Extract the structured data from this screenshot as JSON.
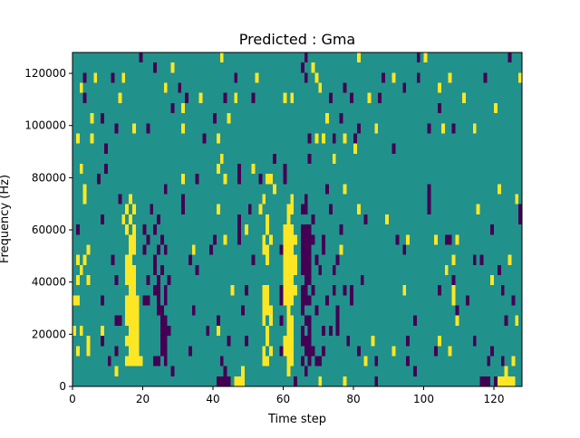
{
  "chart_data": {
    "type": "heatmap",
    "title": "Predicted : Gma",
    "xlabel": "Time step",
    "ylabel": "Frequency (Hz)",
    "xlim": [
      0,
      128
    ],
    "ylim": [
      0,
      128000
    ],
    "x_ticks": [
      0,
      20,
      40,
      60,
      80,
      100,
      120
    ],
    "x_tick_labels": [
      "0",
      "20",
      "40",
      "60",
      "80",
      "100",
      "120"
    ],
    "y_ticks": [
      0,
      20000,
      40000,
      60000,
      80000,
      100000,
      120000
    ],
    "y_tick_labels": [
      "0",
      "20000",
      "40000",
      "60000",
      "80000",
      "100000",
      "120000"
    ],
    "n_time_steps": 128,
    "n_freq_bins": 33,
    "colors": {
      "-1": "#440154",
      "0": "#21918c",
      "1": "#fde725"
    },
    "background_value": 0,
    "rows_top_to_bottom": [
      [
        [
          19,
          -1
        ],
        [
          42,
          1
        ],
        [
          66,
          -1
        ],
        [
          81,
          1
        ],
        [
          98,
          -1
        ],
        [
          100,
          1
        ],
        [
          124,
          -1
        ]
      ],
      [
        [
          23,
          -1
        ],
        [
          28,
          1
        ],
        [
          65,
          -1
        ],
        [
          68,
          1
        ]
      ],
      [
        [
          3,
          -1
        ],
        [
          6,
          1
        ],
        [
          11,
          -1
        ],
        [
          14,
          1
        ],
        [
          46,
          -1
        ],
        [
          52,
          1
        ],
        [
          66,
          -1
        ],
        [
          69,
          1
        ],
        [
          88,
          -1
        ],
        [
          91,
          1
        ],
        [
          98,
          -1
        ],
        [
          107,
          1
        ],
        [
          117,
          -1
        ],
        [
          127,
          1
        ]
      ],
      [
        [
          2,
          1
        ],
        [
          26,
          1
        ],
        [
          30,
          -1
        ],
        [
          70,
          1
        ],
        [
          77,
          -1
        ],
        [
          94,
          -1
        ],
        [
          104,
          1
        ]
      ],
      [
        [
          3,
          -1
        ],
        [
          13,
          1
        ],
        [
          32,
          -1
        ],
        [
          36,
          1
        ],
        [
          43,
          -1
        ],
        [
          46,
          1
        ],
        [
          51,
          -1
        ],
        [
          60,
          1
        ],
        [
          62,
          1
        ],
        [
          73,
          -1
        ],
        [
          79,
          -1
        ],
        [
          84,
          1
        ],
        [
          87,
          -1
        ],
        [
          111,
          1
        ]
      ],
      [
        [
          28,
          -1
        ],
        [
          31,
          1
        ],
        [
          104,
          -1
        ],
        [
          120,
          1
        ]
      ],
      [
        [
          5,
          1
        ],
        [
          8,
          -1
        ],
        [
          40,
          -1
        ],
        [
          44,
          1
        ],
        [
          72,
          1
        ],
        [
          76,
          -1
        ]
      ],
      [
        [
          12,
          -1
        ],
        [
          17,
          1
        ],
        [
          21,
          -1
        ],
        [
          31,
          1
        ],
        [
          81,
          -1
        ],
        [
          86,
          1
        ],
        [
          101,
          -1
        ],
        [
          105,
          1
        ],
        [
          108,
          -1
        ],
        [
          114,
          1
        ]
      ],
      [
        [
          1,
          1
        ],
        [
          5,
          1
        ],
        [
          37,
          -1
        ],
        [
          41,
          1
        ],
        [
          67,
          -1
        ],
        [
          69,
          1
        ],
        [
          71,
          1
        ],
        [
          74,
          -1
        ],
        [
          77,
          1
        ],
        [
          80,
          -1
        ]
      ],
      [
        [
          9,
          -1
        ],
        [
          80,
          1
        ],
        [
          91,
          -1
        ]
      ],
      [
        [
          42,
          1
        ],
        [
          57,
          -1
        ],
        [
          67,
          -1
        ],
        [
          74,
          1
        ]
      ],
      [
        [
          2,
          1
        ],
        [
          9,
          -1
        ],
        [
          41,
          1
        ],
        [
          47,
          -1
        ],
        [
          51,
          1
        ],
        [
          60,
          -1
        ]
      ],
      [
        [
          7,
          -1
        ],
        [
          31,
          1
        ],
        [
          35,
          -1
        ],
        [
          43,
          1
        ],
        [
          47,
          -1
        ],
        [
          53,
          -1
        ],
        [
          55,
          56,
          1
        ],
        [
          60,
          -1
        ]
      ],
      [
        [
          3,
          1
        ],
        [
          26,
          -1
        ],
        [
          57,
          1
        ],
        [
          72,
          -1
        ],
        [
          77,
          1
        ],
        [
          101,
          -1
        ],
        [
          121,
          1
        ]
      ],
      [
        [
          3,
          1
        ],
        [
          13,
          -1
        ],
        [
          16,
          1
        ],
        [
          31,
          -1
        ],
        [
          54,
          1
        ],
        [
          62,
          1
        ],
        [
          66,
          -1
        ],
        [
          101,
          -1
        ],
        [
          126,
          1
        ]
      ],
      [
        [
          15,
          1
        ],
        [
          17,
          1
        ],
        [
          22,
          -1
        ],
        [
          31,
          -1
        ],
        [
          41,
          1
        ],
        [
          50,
          -1
        ],
        [
          53,
          1
        ],
        [
          61,
          62,
          1
        ],
        [
          65,
          66,
          -1
        ],
        [
          73,
          -1
        ],
        [
          81,
          1
        ],
        [
          101,
          -1
        ],
        [
          115,
          1
        ],
        [
          127,
          -1
        ]
      ],
      [
        [
          8,
          -1
        ],
        [
          14,
          1
        ],
        [
          16,
          1
        ],
        [
          24,
          -1
        ],
        [
          47,
          -1
        ],
        [
          55,
          1
        ],
        [
          61,
          1
        ],
        [
          68,
          -1
        ],
        [
          83,
          -1
        ],
        [
          89,
          1
        ],
        [
          127,
          -1
        ]
      ],
      [
        [
          1,
          -1
        ],
        [
          15,
          1
        ],
        [
          17,
          1
        ],
        [
          20,
          -1
        ],
        [
          23,
          -1
        ],
        [
          47,
          -1
        ],
        [
          49,
          1
        ],
        [
          55,
          1
        ],
        [
          60,
          62,
          1
        ],
        [
          65,
          67,
          -1
        ],
        [
          76,
          -1
        ],
        [
          119,
          -1
        ]
      ],
      [
        [
          16,
          17,
          1
        ],
        [
          21,
          -1
        ],
        [
          25,
          -1
        ],
        [
          40,
          -1
        ],
        [
          43,
          1
        ],
        [
          47,
          -1
        ],
        [
          54,
          1
        ],
        [
          56,
          1
        ],
        [
          60,
          63,
          1
        ],
        [
          65,
          68,
          -1
        ],
        [
          71,
          -1
        ],
        [
          92,
          -1
        ],
        [
          95,
          1
        ],
        [
          103,
          1
        ],
        [
          106,
          107,
          -1
        ],
        [
          109,
          1
        ]
      ],
      [
        [
          4,
          1
        ],
        [
          16,
          17,
          1
        ],
        [
          20,
          -1
        ],
        [
          24,
          -1
        ],
        [
          26,
          -1
        ],
        [
          34,
          1
        ],
        [
          39,
          -1
        ],
        [
          54,
          55,
          1
        ],
        [
          59,
          -1
        ],
        [
          60,
          62,
          1
        ],
        [
          65,
          67,
          -1
        ],
        [
          71,
          -1
        ],
        [
          76,
          1
        ],
        [
          94,
          -1
        ]
      ],
      [
        [
          1,
          1
        ],
        [
          3,
          1
        ],
        [
          11,
          -1
        ],
        [
          15,
          16,
          1
        ],
        [
          23,
          -1
        ],
        [
          33,
          -1
        ],
        [
          51,
          -1
        ],
        [
          55,
          1
        ],
        [
          60,
          63,
          1
        ],
        [
          65,
          67,
          -1
        ],
        [
          69,
          -1
        ],
        [
          75,
          -1
        ],
        [
          108,
          1
        ],
        [
          114,
          -1
        ],
        [
          116,
          -1
        ],
        [
          124,
          1
        ]
      ],
      [
        [
          2,
          1
        ],
        [
          15,
          17,
          1
        ],
        [
          23,
          -1
        ],
        [
          25,
          -1
        ],
        [
          35,
          -1
        ],
        [
          60,
          63,
          1
        ],
        [
          65,
          67,
          -1
        ],
        [
          70,
          -1
        ],
        [
          74,
          -1
        ],
        [
          106,
          1
        ],
        [
          121,
          -1
        ]
      ],
      [
        [
          1,
          1
        ],
        [
          4,
          1
        ],
        [
          12,
          -1
        ],
        [
          15,
          17,
          1
        ],
        [
          21,
          -1
        ],
        [
          24,
          -1
        ],
        [
          27,
          -1
        ],
        [
          60,
          62,
          1
        ],
        [
          66,
          67,
          -1
        ],
        [
          82,
          -1
        ],
        [
          108,
          -1
        ],
        [
          119,
          1
        ]
      ],
      [
        [
          16,
          17,
          1
        ],
        [
          23,
          24,
          -1
        ],
        [
          26,
          -1
        ],
        [
          45,
          1
        ],
        [
          49,
          -1
        ],
        [
          54,
          55,
          1
        ],
        [
          59,
          -1
        ],
        [
          60,
          63,
          1
        ],
        [
          65,
          66,
          -1
        ],
        [
          68,
          -1
        ],
        [
          74,
          -1
        ],
        [
          77,
          -1
        ],
        [
          79,
          -1
        ],
        [
          94,
          1
        ],
        [
          104,
          -1
        ],
        [
          108,
          1
        ],
        [
          122,
          -1
        ]
      ],
      [
        [
          0,
          1,
          1
        ],
        [
          8,
          -1
        ],
        [
          15,
          18,
          1
        ],
        [
          20,
          21,
          -1
        ],
        [
          24,
          -1
        ],
        [
          26,
          -1
        ],
        [
          54,
          55,
          1
        ],
        [
          59,
          -1
        ],
        [
          60,
          62,
          1
        ],
        [
          65,
          67,
          -1
        ],
        [
          72,
          -1
        ],
        [
          79,
          -1
        ],
        [
          108,
          1
        ],
        [
          112,
          -1
        ],
        [
          125,
          -1
        ]
      ],
      [
        [
          15,
          18,
          1
        ],
        [
          24,
          25,
          -1
        ],
        [
          34,
          -1
        ],
        [
          48,
          -1
        ],
        [
          54,
          56,
          1
        ],
        [
          61,
          1
        ],
        [
          65,
          -1
        ],
        [
          69,
          -1
        ],
        [
          75,
          -1
        ],
        [
          109,
          -1
        ]
      ],
      [
        [
          12,
          13,
          -1
        ],
        [
          15,
          18,
          1
        ],
        [
          25,
          26,
          -1
        ],
        [
          41,
          -1
        ],
        [
          54,
          1
        ],
        [
          56,
          1
        ],
        [
          59,
          -1
        ],
        [
          61,
          62,
          1
        ],
        [
          66,
          67,
          -1
        ],
        [
          75,
          -1
        ],
        [
          97,
          -1
        ],
        [
          109,
          1
        ],
        [
          123,
          -1
        ],
        [
          126,
          1
        ]
      ],
      [
        [
          0,
          1
        ],
        [
          2,
          1
        ],
        [
          8,
          1
        ],
        [
          16,
          18,
          1
        ],
        [
          25,
          27,
          -1
        ],
        [
          38,
          -1
        ],
        [
          41,
          1
        ],
        [
          55,
          1
        ],
        [
          61,
          62,
          1
        ],
        [
          65,
          -1
        ],
        [
          67,
          -1
        ],
        [
          71,
          -1
        ],
        [
          73,
          -1
        ],
        [
          75,
          -1
        ]
      ],
      [
        [
          4,
          1
        ],
        [
          8,
          -1
        ],
        [
          15,
          18,
          1
        ],
        [
          25,
          26,
          -1
        ],
        [
          44,
          -1
        ],
        [
          49,
          -1
        ],
        [
          55,
          1
        ],
        [
          60,
          62,
          1
        ],
        [
          65,
          67,
          -1
        ],
        [
          78,
          -1
        ],
        [
          85,
          1
        ],
        [
          95,
          -1
        ],
        [
          104,
          1
        ],
        [
          114,
          -1
        ]
      ],
      [
        [
          1,
          1
        ],
        [
          4,
          1
        ],
        [
          12,
          -1
        ],
        [
          16,
          18,
          1
        ],
        [
          25,
          26,
          -1
        ],
        [
          33,
          -1
        ],
        [
          54,
          1
        ],
        [
          56,
          1
        ],
        [
          59,
          -1
        ],
        [
          60,
          62,
          1
        ],
        [
          66,
          68,
          -1
        ],
        [
          71,
          -1
        ],
        [
          81,
          -1
        ],
        [
          91,
          1
        ],
        [
          103,
          -1
        ],
        [
          107,
          1
        ],
        [
          119,
          -1
        ]
      ],
      [
        [
          10,
          -1
        ],
        [
          15,
          19,
          1
        ],
        [
          23,
          24,
          -1
        ],
        [
          26,
          -1
        ],
        [
          42,
          -1
        ],
        [
          54,
          55,
          1
        ],
        [
          61,
          62,
          1
        ],
        [
          65,
          -1
        ],
        [
          67,
          -1
        ],
        [
          69,
          70,
          -1
        ],
        [
          83,
          1
        ],
        [
          86,
          -1
        ],
        [
          95,
          -1
        ],
        [
          118,
          -1
        ],
        [
          122,
          -1
        ],
        [
          125,
          1
        ]
      ],
      [
        [
          12,
          1
        ],
        [
          28,
          -1
        ],
        [
          43,
          -1
        ],
        [
          48,
          1
        ],
        [
          61,
          1
        ],
        [
          66,
          -1
        ],
        [
          97,
          -1
        ],
        [
          123,
          1
        ]
      ],
      [
        [
          41,
          44,
          -1
        ],
        [
          46,
          48,
          1
        ],
        [
          63,
          -1
        ],
        [
          70,
          1
        ],
        [
          77,
          1
        ],
        [
          86,
          -1
        ],
        [
          116,
          118,
          -1
        ],
        [
          120,
          -1
        ],
        [
          121,
          125,
          1
        ]
      ]
    ]
  }
}
